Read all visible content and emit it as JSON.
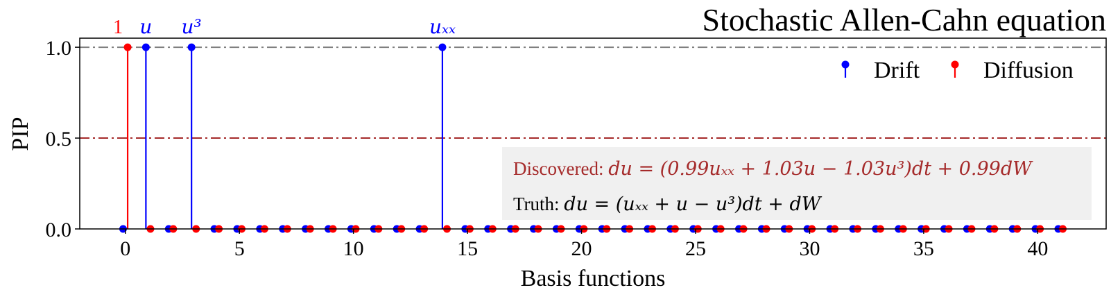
{
  "chart_data": {
    "type": "stem",
    "title": "Stochastic Allen-Cahn equation",
    "xlabel": "Basis functions",
    "ylabel": "PIP",
    "xlim": [
      -2,
      43
    ],
    "ylim": [
      0,
      1.05
    ],
    "xticks": [
      0,
      5,
      10,
      15,
      20,
      25,
      30,
      35,
      40
    ],
    "yticks": [
      0.0,
      0.5,
      1.0
    ],
    "ytick_labels": [
      "0.0",
      "0.5",
      "1.0"
    ],
    "grid": false,
    "legend_position": "top-right",
    "reference_lines": [
      {
        "y": 1.0,
        "color": "#808080",
        "style": "dash-dot"
      },
      {
        "y": 0.5,
        "color": "#a52a2a",
        "style": "dash-dot"
      }
    ],
    "series": [
      {
        "name": "Drift",
        "color": "#0000ff",
        "x_offset": -0.1,
        "values": [
          0,
          1,
          0,
          1,
          0,
          0,
          0,
          0,
          0,
          0,
          0,
          0,
          0,
          0,
          1,
          0,
          0,
          0,
          0,
          0,
          0,
          0,
          0,
          0,
          0,
          0,
          0,
          0,
          0,
          0,
          0,
          0,
          0,
          0,
          0,
          0,
          0,
          0,
          0,
          0,
          0,
          0
        ]
      },
      {
        "name": "Diffusion",
        "color": "#ff0000",
        "x_offset": 0.1,
        "values": [
          1,
          0,
          0,
          0,
          0,
          0,
          0,
          0,
          0,
          0,
          0,
          0,
          0,
          0,
          0,
          0,
          0,
          0,
          0,
          0,
          0,
          0,
          0,
          0,
          0,
          0,
          0,
          0,
          0,
          0,
          0,
          0,
          0,
          0,
          0,
          0,
          0,
          0,
          0,
          0,
          0,
          0
        ]
      }
    ],
    "stem_labels": [
      {
        "text": "1",
        "x": 0,
        "series": "Diffusion",
        "color": "#ff0000"
      },
      {
        "text": "u",
        "x": 1,
        "series": "Drift",
        "color": "#0000ff"
      },
      {
        "text": "u³",
        "x": 3,
        "series": "Drift",
        "color": "#0000ff"
      },
      {
        "text": "uₓₓ",
        "x": 14,
        "series": "Drift",
        "color": "#0000ff"
      }
    ],
    "annotation": {
      "discovered_label": "Discovered: ",
      "discovered_eq": "du = (0.99uₓₓ + 1.03u − 1.03u³)dt + 0.99dW",
      "discovered_color": "#a52a2a",
      "truth_label": "Truth: ",
      "truth_eq": "du = (uₓₓ + u − u³)dt + dW",
      "truth_color": "#000000",
      "background": "#f0f0f0"
    }
  }
}
